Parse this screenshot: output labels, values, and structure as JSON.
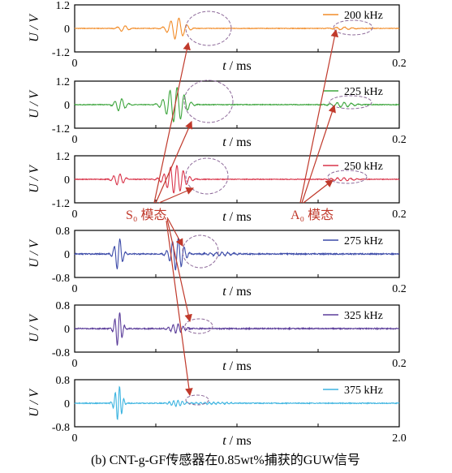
{
  "chart_data": [
    {
      "type": "line",
      "freq_label": "200 kHz",
      "color": "#f28c28",
      "ylabel": "U / V",
      "xlabel": "t / ms",
      "x_ticks": [
        "0",
        "0.2"
      ],
      "y_ticks": [
        "1.2",
        "0",
        "-1.2"
      ],
      "xlim": [
        0,
        0.2
      ],
      "ylim": [
        -1.2,
        1.2
      ],
      "bursts": [
        {
          "center": 0.03,
          "amp": 0.15,
          "width": 0.004,
          "period": 0.005
        },
        {
          "center": 0.063,
          "amp": 0.55,
          "width": 0.006,
          "period": 0.005
        },
        {
          "center": 0.165,
          "amp": 0.07,
          "width": 0.007,
          "period": 0.005
        }
      ],
      "noise": 0.015
    },
    {
      "type": "line",
      "freq_label": "225 kHz",
      "color": "#3fa63f",
      "ylabel": "U / V",
      "xlabel": "t / ms",
      "x_ticks": [
        "0",
        "0.2"
      ],
      "y_ticks": [
        "1.2",
        "0",
        "-1.2"
      ],
      "xlim": [
        0,
        0.2
      ],
      "ylim": [
        -1.2,
        1.2
      ],
      "bursts": [
        {
          "center": 0.028,
          "amp": 0.32,
          "width": 0.004,
          "period": 0.0044
        },
        {
          "center": 0.062,
          "amp": 0.9,
          "width": 0.007,
          "period": 0.0044
        },
        {
          "center": 0.165,
          "amp": 0.12,
          "width": 0.008,
          "period": 0.0044
        }
      ],
      "noise": 0.02
    },
    {
      "type": "line",
      "freq_label": "250 kHz",
      "color": "#d9344a",
      "ylabel": "U / V",
      "xlabel": "t / ms",
      "x_ticks": [
        "0",
        "0.2"
      ],
      "y_ticks": [
        "1.2",
        "0",
        "-1.2"
      ],
      "xlim": [
        0,
        0.2
      ],
      "ylim": [
        -1.2,
        1.2
      ],
      "bursts": [
        {
          "center": 0.027,
          "amp": 0.3,
          "width": 0.004,
          "period": 0.004
        },
        {
          "center": 0.062,
          "amp": 0.72,
          "width": 0.007,
          "period": 0.004
        },
        {
          "center": 0.165,
          "amp": 0.08,
          "width": 0.008,
          "period": 0.004
        }
      ],
      "noise": 0.018
    },
    {
      "type": "line",
      "freq_label": "275 kHz",
      "color": "#3b4aa8",
      "ylabel": "U / V",
      "xlabel": "t / ms",
      "x_ticks": [
        "0",
        "0.2"
      ],
      "y_ticks": [
        "0.8",
        "0",
        "-0.8"
      ],
      "xlim": [
        0,
        0.2
      ],
      "ylim": [
        -0.8,
        0.8
      ],
      "bursts": [
        {
          "center": 0.027,
          "amp": 0.55,
          "width": 0.003,
          "period": 0.0036
        },
        {
          "center": 0.063,
          "amp": 0.55,
          "width": 0.005,
          "period": 0.0036
        },
        {
          "center": 0.09,
          "amp": 0.06,
          "width": 0.01,
          "period": 0.0036
        }
      ],
      "noise": 0.02
    },
    {
      "type": "line",
      "freq_label": "325 kHz",
      "color": "#5b3d9a",
      "ylabel": "U / V",
      "xlabel": "t / ms",
      "x_ticks": [
        "0",
        "0.2"
      ],
      "y_ticks": [
        "0.8",
        "0",
        "-0.8"
      ],
      "xlim": [
        0,
        0.2
      ],
      "ylim": [
        -0.8,
        0.8
      ],
      "bursts": [
        {
          "center": 0.027,
          "amp": 0.6,
          "width": 0.0028,
          "period": 0.0031
        },
        {
          "center": 0.063,
          "amp": 0.15,
          "width": 0.005,
          "period": 0.0031
        }
      ],
      "noise": 0.02
    },
    {
      "type": "line",
      "freq_label": "375 kHz",
      "color": "#3cb4e0",
      "ylabel": "U / V",
      "xlabel": "t / ms",
      "x_ticks": [
        "0",
        "2.0"
      ],
      "y_ticks": [
        "0.8",
        "0",
        "-0.8"
      ],
      "xlim": [
        0,
        2.0
      ],
      "ylim": [
        -0.8,
        0.8
      ],
      "bursts": [
        {
          "center": 0.27,
          "amp": 0.6,
          "width": 0.028,
          "period": 0.027
        },
        {
          "center": 0.63,
          "amp": 0.1,
          "width": 0.05,
          "period": 0.027
        },
        {
          "center": 0.85,
          "amp": 0.03,
          "width": 0.15,
          "period": 0.027
        }
      ],
      "noise": 0.015
    }
  ],
  "annotations": {
    "s0_label": "S₀ 模态",
    "a0_label": "A₀ 模态",
    "color": "#c0392b"
  },
  "caption": "(b)  CNT-g-GF传感器在0.85wt%捕获的GUW信号"
}
